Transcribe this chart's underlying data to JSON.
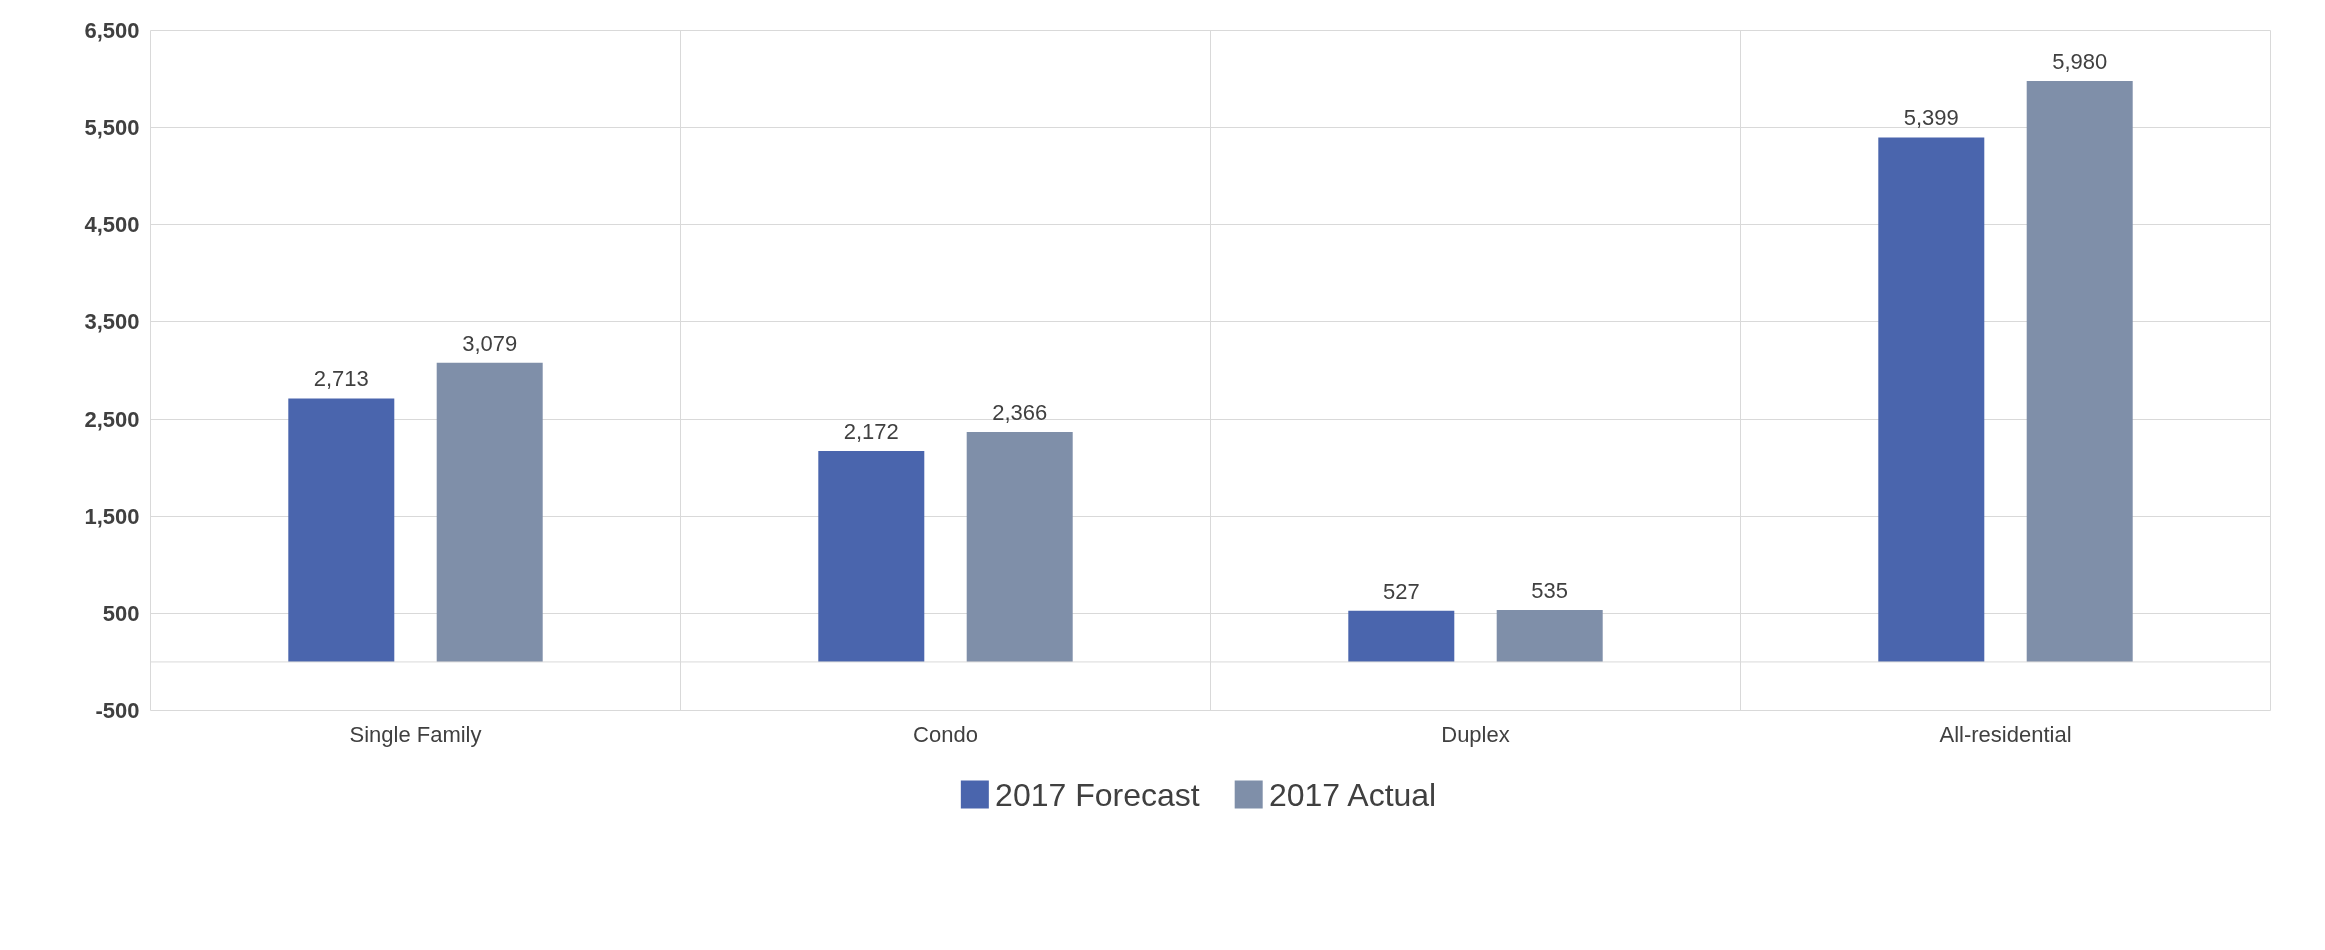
{
  "chart_data": {
    "type": "bar",
    "categories": [
      "Single Family",
      "Condo",
      "Duplex",
      "All-residential"
    ],
    "series": [
      {
        "name": "2017 Forecast",
        "color": "#4a65ad",
        "values": [
          2713,
          2172,
          527,
          5399
        ],
        "value_labels": [
          "2,713",
          "2,172",
          "527",
          "5,399"
        ]
      },
      {
        "name": "2017 Actual",
        "color": "#7f8fa9",
        "values": [
          3079,
          2366,
          535,
          5980
        ],
        "value_labels": [
          "3,079",
          "2,366",
          "535",
          "5,980"
        ]
      }
    ],
    "ylim": [
      -500,
      6500
    ],
    "yticks": [
      {
        "value": -500,
        "label": "-500"
      },
      {
        "value": 500,
        "label": "500"
      },
      {
        "value": 1500,
        "label": "1,500"
      },
      {
        "value": 2500,
        "label": "2,500"
      },
      {
        "value": 3500,
        "label": "3,500"
      },
      {
        "value": 4500,
        "label": "4,500"
      },
      {
        "value": 5500,
        "label": "5,500"
      },
      {
        "value": 6500,
        "label": "6,500"
      }
    ],
    "grid": true,
    "legend": "bottom"
  }
}
